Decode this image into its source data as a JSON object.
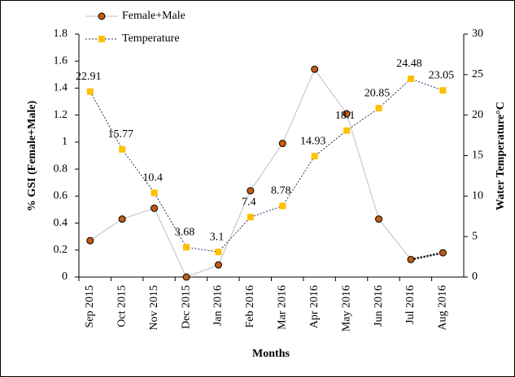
{
  "chart_data": {
    "type": "line",
    "x_label": "Months",
    "y_label": "% GSI (Female+Male)",
    "y2_label": "Water Temperature°C",
    "categories": [
      "Sep 2015",
      "Oct 2015",
      "Nov 2015",
      "Dec 2015",
      "Jan 2016",
      "Feb 2016",
      "Mar 2016",
      "Apr 2016",
      "May 2016",
      "Jun 2016",
      "Jul 2016",
      "Aug 2016"
    ],
    "series": [
      {
        "name": "Female+Male",
        "color": "#c55a11",
        "values": [
          0.27,
          0.43,
          0.51,
          0.0,
          0.09,
          0.64,
          0.99,
          1.54,
          1.21,
          0.43,
          0.13,
          0.18
        ]
      },
      {
        "name": "Temperature",
        "color": "#ffc000",
        "axis": "y2",
        "values": [
          22.91,
          15.77,
          10.4,
          3.68,
          3.1,
          7.4,
          8.78,
          14.93,
          18.1,
          20.85,
          24.48,
          23.05
        ],
        "show_labels": true
      }
    ],
    "ylim": [
      0,
      1.8
    ],
    "yticks": [
      0,
      0.2,
      0.4,
      0.6,
      0.8,
      1,
      1.2,
      1.4,
      1.6,
      1.8
    ],
    "y2lim": [
      0,
      30
    ],
    "y2ticks": [
      0,
      5,
      10,
      15,
      20,
      25,
      30
    ],
    "legend": "top-left"
  }
}
